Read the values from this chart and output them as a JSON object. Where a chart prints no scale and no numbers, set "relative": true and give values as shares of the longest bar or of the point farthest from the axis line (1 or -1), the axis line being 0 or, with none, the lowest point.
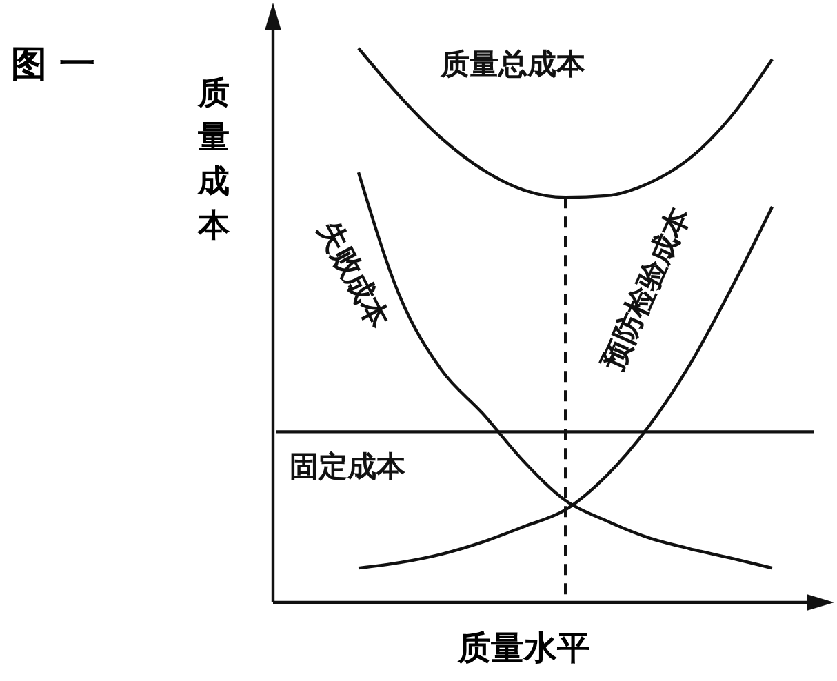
{
  "chart_data": {
    "type": "line",
    "title": "图 一",
    "xlabel": "质量水平",
    "ylabel": "质量成本",
    "relative": true,
    "line_style": "solid",
    "categories": [
      null,
      null,
      null,
      null,
      null,
      null,
      null,
      null,
      null,
      null,
      null,
      null,
      null,
      null
    ],
    "series": [
      {
        "name": "质量总成本",
        "color": "#111111",
        "values": [
          null,
          null,
          1.0,
          0.913,
          0.838,
          0.781,
          0.744,
          0.731,
          0.734,
          0.756,
          0.801,
          0.876,
          0.98,
          null
        ]
      },
      {
        "name": "失败成本",
        "color": "#111111",
        "values": [
          null,
          null,
          0.776,
          0.552,
          0.42,
          0.341,
          0.254,
          0.184,
          0.147,
          0.117,
          0.097,
          0.08,
          0.062,
          null
        ]
      },
      {
        "name": "预防检验成本",
        "color": "#111111",
        "values": [
          null,
          null,
          0.062,
          0.072,
          0.087,
          0.109,
          0.137,
          0.167,
          0.229,
          0.316,
          0.428,
          0.565,
          0.714,
          null
        ]
      },
      {
        "name": "固定成本",
        "color": "#111111",
        "values": [
          0.308,
          0.308,
          0.308,
          0.308,
          0.308,
          0.308,
          0.308,
          0.308,
          0.308,
          0.308,
          0.308,
          0.308,
          0.308,
          0.308
        ]
      }
    ]
  }
}
